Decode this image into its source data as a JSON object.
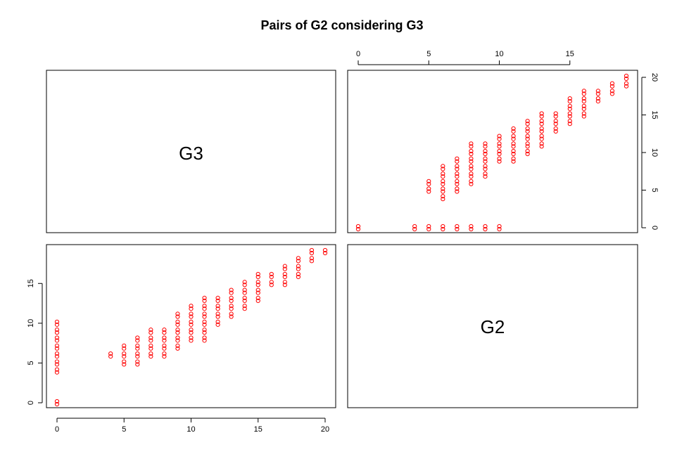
{
  "title": "Pairs of G2 considering G3",
  "point_color": "#ff0000",
  "point_marker": "o",
  "chart_data": [
    {
      "type": "scatter",
      "panel": "G3 vs G2",
      "position": "top-right",
      "x_variable": "G2",
      "y_variable": "G3",
      "x_ticks": [
        "0",
        "5",
        "10",
        "15"
      ],
      "y_ticks": [
        "0",
        "5",
        "10",
        "15",
        "20"
      ],
      "x_axis_placement": "top",
      "y_axis_placement": "right",
      "xlim": [
        0,
        19
      ],
      "ylim": [
        0,
        20
      ],
      "points": [
        [
          0,
          0
        ],
        [
          4,
          0
        ],
        [
          5,
          0
        ],
        [
          6,
          0
        ],
        [
          7,
          0
        ],
        [
          8,
          0
        ],
        [
          9,
          0
        ],
        [
          10,
          0
        ],
        [
          5,
          5
        ],
        [
          5,
          6
        ],
        [
          6,
          4
        ],
        [
          6,
          5
        ],
        [
          6,
          6
        ],
        [
          6,
          7
        ],
        [
          6,
          8
        ],
        [
          7,
          5
        ],
        [
          7,
          6
        ],
        [
          7,
          7
        ],
        [
          7,
          8
        ],
        [
          7,
          9
        ],
        [
          8,
          6
        ],
        [
          8,
          7
        ],
        [
          8,
          8
        ],
        [
          8,
          9
        ],
        [
          8,
          10
        ],
        [
          8,
          11
        ],
        [
          9,
          7
        ],
        [
          9,
          8
        ],
        [
          9,
          9
        ],
        [
          9,
          10
        ],
        [
          9,
          11
        ],
        [
          10,
          9
        ],
        [
          10,
          10
        ],
        [
          10,
          11
        ],
        [
          10,
          12
        ],
        [
          11,
          9
        ],
        [
          11,
          10
        ],
        [
          11,
          11
        ],
        [
          11,
          12
        ],
        [
          11,
          13
        ],
        [
          12,
          10
        ],
        [
          12,
          11
        ],
        [
          12,
          12
        ],
        [
          12,
          13
        ],
        [
          12,
          14
        ],
        [
          13,
          11
        ],
        [
          13,
          12
        ],
        [
          13,
          13
        ],
        [
          13,
          14
        ],
        [
          13,
          15
        ],
        [
          14,
          13
        ],
        [
          14,
          14
        ],
        [
          14,
          15
        ],
        [
          15,
          14
        ],
        [
          15,
          15
        ],
        [
          15,
          16
        ],
        [
          15,
          17
        ],
        [
          16,
          15
        ],
        [
          16,
          16
        ],
        [
          16,
          17
        ],
        [
          16,
          18
        ],
        [
          17,
          17
        ],
        [
          17,
          18
        ],
        [
          18,
          18
        ],
        [
          18,
          19
        ],
        [
          19,
          19
        ],
        [
          19,
          20
        ]
      ]
    },
    {
      "type": "scatter",
      "panel": "G2 vs G3",
      "position": "bottom-left",
      "x_variable": "G3",
      "y_variable": "G2",
      "x_ticks": [
        "0",
        "5",
        "10",
        "15",
        "20"
      ],
      "y_ticks": [
        "0",
        "5",
        "10",
        "15"
      ],
      "x_axis_placement": "bottom",
      "y_axis_placement": "left",
      "xlim": [
        0,
        20
      ],
      "ylim": [
        0,
        19
      ],
      "points": [
        [
          0,
          0
        ],
        [
          0,
          4
        ],
        [
          0,
          5
        ],
        [
          0,
          6
        ],
        [
          0,
          7
        ],
        [
          0,
          8
        ],
        [
          0,
          9
        ],
        [
          0,
          10
        ],
        [
          4,
          6
        ],
        [
          5,
          5
        ],
        [
          5,
          6
        ],
        [
          5,
          7
        ],
        [
          6,
          5
        ],
        [
          6,
          6
        ],
        [
          6,
          7
        ],
        [
          6,
          8
        ],
        [
          7,
          6
        ],
        [
          7,
          7
        ],
        [
          7,
          8
        ],
        [
          7,
          9
        ],
        [
          8,
          6
        ],
        [
          8,
          7
        ],
        [
          8,
          8
        ],
        [
          8,
          9
        ],
        [
          9,
          7
        ],
        [
          9,
          8
        ],
        [
          9,
          9
        ],
        [
          9,
          10
        ],
        [
          9,
          11
        ],
        [
          10,
          8
        ],
        [
          10,
          9
        ],
        [
          10,
          10
        ],
        [
          10,
          11
        ],
        [
          10,
          12
        ],
        [
          11,
          8
        ],
        [
          11,
          9
        ],
        [
          11,
          10
        ],
        [
          11,
          11
        ],
        [
          11,
          12
        ],
        [
          11,
          13
        ],
        [
          12,
          10
        ],
        [
          12,
          11
        ],
        [
          12,
          12
        ],
        [
          12,
          13
        ],
        [
          13,
          11
        ],
        [
          13,
          12
        ],
        [
          13,
          13
        ],
        [
          13,
          14
        ],
        [
          14,
          12
        ],
        [
          14,
          13
        ],
        [
          14,
          14
        ],
        [
          14,
          15
        ],
        [
          15,
          13
        ],
        [
          15,
          14
        ],
        [
          15,
          15
        ],
        [
          15,
          16
        ],
        [
          16,
          15
        ],
        [
          16,
          16
        ],
        [
          17,
          15
        ],
        [
          17,
          16
        ],
        [
          17,
          17
        ],
        [
          18,
          16
        ],
        [
          18,
          17
        ],
        [
          18,
          18
        ],
        [
          19,
          18
        ],
        [
          19,
          19
        ],
        [
          20,
          19
        ]
      ]
    }
  ],
  "diagonal_labels": {
    "top_left": "G3",
    "bottom_right": "G2"
  }
}
